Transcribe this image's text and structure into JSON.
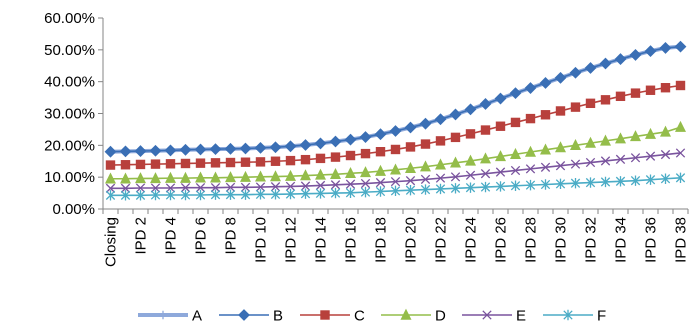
{
  "chart_data": {
    "type": "line",
    "title": "",
    "xlabel": "",
    "ylabel": "",
    "ylim": [
      0,
      0.6
    ],
    "y_tick_format": "percent_2dp",
    "y_ticks": [
      "0.00%",
      "10.00%",
      "20.00%",
      "30.00%",
      "40.00%",
      "50.00%",
      "60.00%"
    ],
    "grid": false,
    "legend_position": "bottom",
    "x": [
      "Closing",
      "IPD 1",
      "IPD 2",
      "IPD 3",
      "IPD 4",
      "IPD 5",
      "IPD 6",
      "IPD 7",
      "IPD 8",
      "IPD 9",
      "IPD 10",
      "IPD 11",
      "IPD 12",
      "IPD 13",
      "IPD 14",
      "IPD 15",
      "IPD 16",
      "IPD 17",
      "IPD 18",
      "IPD 19",
      "IPD 20",
      "IPD 21",
      "IPD 22",
      "IPD 23",
      "IPD 24",
      "IPD 25",
      "IPD 26",
      "IPD 27",
      "IPD 28",
      "IPD 29",
      "IPD 30",
      "IPD 31",
      "IPD 32",
      "IPD 33",
      "IPD 34",
      "IPD 35",
      "IPD 36",
      "IPD 37",
      "IPD 38"
    ],
    "x_tick_labels_shown": [
      "Closing",
      "IPD 2",
      "IPD 4",
      "IPD 6",
      "IPD 8",
      "IPD 10",
      "IPD 12",
      "IPD 14",
      "IPD 16",
      "IPD 18",
      "IPD 20",
      "IPD 22",
      "IPD 24",
      "IPD 26",
      "IPD 28",
      "IPD 30",
      "IPD 32",
      "IPD 34",
      "IPD 36",
      "IPD 38"
    ],
    "series": [
      {
        "name": "A",
        "color": "#8EA9DB",
        "marker": "plus",
        "values": [
          0.18,
          0.181,
          0.182,
          0.183,
          0.184,
          0.186,
          0.187,
          0.188,
          0.189,
          0.19,
          0.192,
          0.194,
          0.197,
          0.201,
          0.206,
          0.212,
          0.218,
          0.226,
          0.235,
          0.245,
          0.256,
          0.268,
          0.282,
          0.297,
          0.313,
          0.33,
          0.347,
          0.364,
          0.38,
          0.396,
          0.412,
          0.428,
          0.443,
          0.457,
          0.471,
          0.484,
          0.496,
          0.506,
          0.51
        ]
      },
      {
        "name": "B",
        "color": "#3A6FB5",
        "marker": "diamond",
        "values": [
          0.18,
          0.181,
          0.182,
          0.183,
          0.184,
          0.186,
          0.187,
          0.188,
          0.189,
          0.19,
          0.192,
          0.194,
          0.197,
          0.201,
          0.206,
          0.212,
          0.218,
          0.226,
          0.235,
          0.245,
          0.256,
          0.268,
          0.282,
          0.297,
          0.313,
          0.33,
          0.347,
          0.364,
          0.38,
          0.396,
          0.412,
          0.428,
          0.443,
          0.457,
          0.471,
          0.484,
          0.496,
          0.506,
          0.51
        ]
      },
      {
        "name": "C",
        "color": "#B8403C",
        "marker": "square",
        "values": [
          0.138,
          0.139,
          0.14,
          0.141,
          0.142,
          0.143,
          0.144,
          0.145,
          0.146,
          0.147,
          0.148,
          0.15,
          0.152,
          0.155,
          0.159,
          0.163,
          0.168,
          0.174,
          0.18,
          0.187,
          0.195,
          0.204,
          0.214,
          0.225,
          0.236,
          0.248,
          0.26,
          0.272,
          0.284,
          0.296,
          0.308,
          0.32,
          0.332,
          0.343,
          0.354,
          0.364,
          0.373,
          0.381,
          0.388
        ]
      },
      {
        "name": "D",
        "color": "#94BD4A",
        "marker": "triangle",
        "values": [
          0.095,
          0.095,
          0.096,
          0.096,
          0.097,
          0.097,
          0.098,
          0.098,
          0.099,
          0.1,
          0.101,
          0.102,
          0.103,
          0.105,
          0.107,
          0.109,
          0.112,
          0.115,
          0.119,
          0.123,
          0.128,
          0.133,
          0.139,
          0.145,
          0.151,
          0.158,
          0.165,
          0.172,
          0.179,
          0.186,
          0.193,
          0.2,
          0.207,
          0.214,
          0.221,
          0.228,
          0.235,
          0.242,
          0.257
        ]
      },
      {
        "name": "E",
        "color": "#7A549E",
        "marker": "x",
        "values": [
          0.065,
          0.065,
          0.066,
          0.066,
          0.066,
          0.067,
          0.067,
          0.067,
          0.068,
          0.068,
          0.069,
          0.07,
          0.071,
          0.072,
          0.074,
          0.076,
          0.078,
          0.08,
          0.083,
          0.086,
          0.089,
          0.093,
          0.097,
          0.101,
          0.106,
          0.111,
          0.116,
          0.121,
          0.126,
          0.131,
          0.136,
          0.141,
          0.146,
          0.151,
          0.156,
          0.161,
          0.166,
          0.171,
          0.176
        ]
      },
      {
        "name": "F",
        "color": "#4BACC6",
        "marker": "asterisk",
        "values": [
          0.043,
          0.043,
          0.043,
          0.044,
          0.044,
          0.044,
          0.044,
          0.045,
          0.045,
          0.045,
          0.046,
          0.046,
          0.047,
          0.048,
          0.049,
          0.05,
          0.051,
          0.053,
          0.055,
          0.057,
          0.059,
          0.061,
          0.063,
          0.065,
          0.067,
          0.069,
          0.071,
          0.073,
          0.075,
          0.077,
          0.079,
          0.081,
          0.083,
          0.085,
          0.087,
          0.089,
          0.092,
          0.095,
          0.098
        ]
      }
    ]
  }
}
